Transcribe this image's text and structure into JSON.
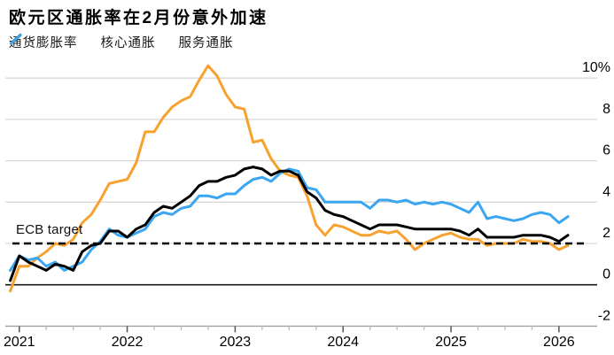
{
  "title": "欧元区通胀率在2月份意外加速",
  "annotations": {
    "ecb_target": "ECB target"
  },
  "legend": [
    {
      "label": "通货膨胀率",
      "color": "#F7A12E"
    },
    {
      "label": "核心通胀",
      "color": "#000000"
    },
    {
      "label": "服务通胀",
      "color": "#3AA5F0"
    }
  ],
  "colors": {
    "headline": "#F7A12E",
    "core": "#000000",
    "services": "#3AA5F0",
    "gridline": "#d9d9d9",
    "zero_line": "#1a1a1a",
    "axis_line": "#a3a3a3",
    "major_tick": "#555555",
    "minor_tick": "#bbbbbb",
    "reference_line": "#000000"
  },
  "chart_data": {
    "type": "line",
    "x_unit": "month",
    "x_start": "2020-12",
    "x_end": "2026-02",
    "x_tick_labels": [
      "2021",
      "2022",
      "2023",
      "2024",
      "2025",
      "2026"
    ],
    "y_ticks": [
      10,
      8,
      6,
      4,
      2,
      0,
      -2
    ],
    "y_tick_labels": [
      "10%",
      "8",
      "6",
      "4",
      "2",
      "0",
      "-2"
    ],
    "ylim": [
      -2,
      10
    ],
    "grid": true,
    "legend_position": "top-left",
    "reference_line": {
      "label": "ECB target",
      "value": 2,
      "style": "dashed"
    },
    "series": [
      {
        "name": "通货膨胀率",
        "key": "headline",
        "color": "#F7A12E",
        "values": [
          -0.3,
          0.9,
          0.9,
          1.3,
          1.6,
          2.0,
          1.9,
          2.2,
          3.0,
          3.4,
          4.1,
          4.9,
          5.0,
          5.1,
          5.9,
          7.4,
          7.4,
          8.1,
          8.6,
          8.9,
          9.1,
          9.9,
          10.6,
          10.1,
          9.2,
          8.6,
          8.5,
          6.9,
          7.0,
          6.1,
          5.5,
          5.3,
          5.2,
          4.3,
          2.9,
          2.4,
          2.9,
          2.8,
          2.6,
          2.4,
          2.4,
          2.6,
          2.5,
          2.6,
          2.2,
          1.7,
          2.0,
          2.2,
          2.4,
          2.5,
          2.3,
          2.2,
          2.2,
          1.9,
          2.0,
          2.0,
          2.0,
          2.2,
          2.1,
          2.1,
          2.0,
          1.7,
          1.9
        ]
      },
      {
        "name": "核心通胀",
        "key": "core",
        "color": "#000000",
        "values": [
          0.2,
          1.4,
          1.1,
          0.9,
          0.7,
          1.0,
          0.9,
          0.7,
          1.6,
          1.9,
          2.0,
          2.6,
          2.6,
          2.3,
          2.7,
          2.9,
          3.5,
          3.8,
          3.7,
          4.0,
          4.3,
          4.8,
          5.0,
          5.0,
          5.2,
          5.3,
          5.6,
          5.7,
          5.6,
          5.3,
          5.5,
          5.5,
          5.3,
          4.5,
          4.2,
          3.6,
          3.4,
          3.3,
          3.1,
          2.9,
          2.7,
          2.9,
          2.9,
          2.9,
          2.8,
          2.7,
          2.7,
          2.7,
          2.7,
          2.7,
          2.6,
          2.4,
          2.7,
          2.3,
          2.3,
          2.3,
          2.3,
          2.4,
          2.4,
          2.4,
          2.3,
          2.1,
          2.4
        ]
      },
      {
        "name": "服务通胀",
        "key": "services",
        "color": "#3AA5F0",
        "values": [
          0.7,
          1.4,
          1.2,
          1.3,
          0.9,
          1.1,
          0.7,
          0.9,
          1.1,
          1.7,
          2.1,
          2.7,
          2.4,
          2.3,
          2.5,
          2.7,
          3.3,
          3.5,
          3.4,
          3.7,
          3.8,
          4.3,
          4.3,
          4.2,
          4.4,
          4.4,
          4.8,
          5.1,
          5.2,
          5.0,
          5.4,
          5.6,
          5.5,
          4.7,
          4.6,
          4.0,
          4.0,
          4.0,
          4.0,
          4.0,
          3.7,
          4.1,
          4.1,
          4.0,
          4.1,
          3.9,
          4.0,
          3.9,
          4.0,
          3.9,
          3.7,
          3.5,
          4.0,
          3.2,
          3.3,
          3.2,
          3.1,
          3.2,
          3.4,
          3.5,
          3.4,
          3.0,
          3.3
        ]
      }
    ]
  }
}
